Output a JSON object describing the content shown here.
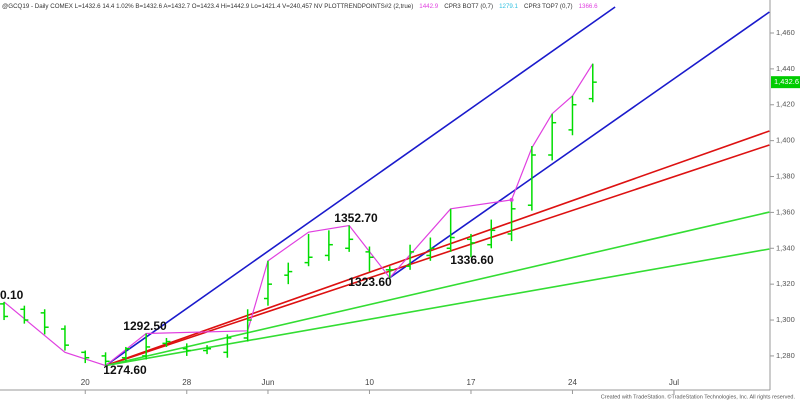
{
  "chart_data": {
    "type": "ohlc",
    "header": [
      {
        "text": "@GCQ19 - Daily  COMEX  L=1432.6  14.4  1.02%  B=1432.6  A=1432.7  O=1423.4  Hi=1442.9  Lo=1421.4  V=240,457  NV  PLOTTRENDPOINTS#2 (2,true)",
        "color": "#333333"
      },
      {
        "text": "1442.9",
        "color": "#e040e0"
      },
      {
        "text": "CPR3 BOT7 (0,7)",
        "color": "#333333"
      },
      {
        "text": "1279.1",
        "color": "#30c0e0"
      },
      {
        "text": "CPR3 TOP7 (0,7)",
        "color": "#333333"
      },
      {
        "text": "1366.6",
        "color": "#e040e0"
      }
    ],
    "categories": [
      "",
      "",
      "",
      "",
      "20",
      null,
      null,
      null,
      null,
      "28",
      null,
      null,
      null,
      "Jun",
      null,
      null,
      null,
      null,
      "10",
      null,
      null,
      null,
      null,
      "17",
      null,
      null,
      null,
      null,
      "24",
      null,
      null,
      null,
      null,
      "Jul",
      null,
      null,
      null,
      null
    ],
    "bar_color": "#00dd00",
    "open": [
      1309,
      1306,
      1304,
      1295,
      1282,
      1280,
      1279,
      1280,
      1287,
      1284,
      1283,
      1282,
      1290,
      1312,
      1325,
      1332,
      1336,
      1340,
      1338,
      1328,
      1330,
      1336,
      1340,
      1345,
      1342,
      1348,
      1364,
      1392,
      1406,
      1423.4,
      null,
      null,
      null,
      null,
      null,
      null,
      null,
      null
    ],
    "high": [
      1310.1,
      1308,
      1306,
      1297,
      1283,
      1282,
      1285,
      1292.5,
      1290,
      1287,
      1286,
      1292,
      1306,
      1333,
      1332,
      1348,
      1350,
      1352.7,
      1341,
      1330,
      1342,
      1346,
      1362,
      1348,
      1356,
      1366,
      1397,
      1415,
      1425,
      1442.9,
      null,
      null,
      null,
      null,
      null,
      null,
      null,
      null
    ],
    "low": [
      1300,
      1298,
      1292,
      1283,
      1276,
      1274.6,
      1277,
      1278,
      1285,
      1280,
      1281,
      1279,
      1288,
      1308,
      1320,
      1330,
      1333,
      1338,
      1327,
      1323.6,
      1328,
      1333,
      1338,
      1335,
      1340,
      1344,
      1361,
      1389,
      1403,
      1421.4,
      null,
      null,
      null,
      null,
      null,
      null,
      null,
      null
    ],
    "close": [
      1302,
      1300,
      1296,
      1286,
      1279,
      1277,
      1284,
      1285,
      1288,
      1283,
      1284,
      1290,
      1300,
      1320,
      1327,
      1335,
      1342,
      1345,
      1335,
      1328,
      1338,
      1340,
      1346,
      1343,
      1350,
      1362,
      1392,
      1410,
      1420,
      1432.6,
      null,
      null,
      null,
      null,
      null,
      null,
      null,
      null
    ],
    "swing": {
      "color": "#e040e0",
      "x": [
        0,
        3,
        5,
        7,
        12,
        13,
        15,
        17,
        19,
        22,
        25,
        26,
        27,
        28,
        29
      ],
      "values": [
        1310.1,
        1282,
        1274.6,
        1292.5,
        1294,
        1333,
        1349,
        1352.7,
        1323.6,
        1362,
        1367,
        1396,
        1415,
        1425,
        1442.9
      ]
    },
    "trendlines": [
      {
        "color": "#1a1acc",
        "x": [
          5,
          30.1
        ],
        "values": [
          1274.6,
          1474.5
        ]
      },
      {
        "color": "#1a1acc",
        "x": [
          19,
          37.7
        ],
        "values": [
          1323.6,
          1471.7
        ]
      },
      {
        "color": "#dd1111",
        "x": [
          5,
          37.7
        ],
        "values": [
          1274.6,
          1405.4
        ]
      },
      {
        "color": "#dd1111",
        "x": [
          5,
          37.7
        ],
        "values": [
          1274.6,
          1397.6
        ]
      },
      {
        "color": "#33dd33",
        "x": [
          5,
          37.7
        ],
        "values": [
          1274.6,
          1360.2
        ]
      },
      {
        "color": "#33dd33",
        "x": [
          5,
          37.7
        ],
        "values": [
          1274.6,
          1339.6
        ]
      }
    ],
    "annotations": [
      "0.10",
      "1274.60",
      "1292.50",
      "1352.70",
      "1323.60",
      "1336.60"
    ],
    "last_price": {
      "value": 1432.6,
      "label": "1,432.6"
    },
    "xlim": [
      -0.2,
      37.73
    ],
    "ylim": [
      1261,
      1478.4
    ],
    "yticks": [
      {
        "value": 1280,
        "label": "1,280"
      },
      {
        "value": 1300,
        "label": "1,300"
      },
      {
        "value": 1320,
        "label": "1,320"
      },
      {
        "value": 1340,
        "label": "1,340"
      },
      {
        "value": 1360,
        "label": "1,360"
      },
      {
        "value": 1380,
        "label": "1,380"
      },
      {
        "value": 1400,
        "label": "1,400"
      },
      {
        "value": 1420,
        "label": "1,420"
      },
      {
        "value": 1440,
        "label": "1,440"
      },
      {
        "value": 1460,
        "label": "1,460"
      }
    ],
    "footer": "Created with TradeStation. ©TradeStation Technologies, Inc. All rights reserved."
  }
}
